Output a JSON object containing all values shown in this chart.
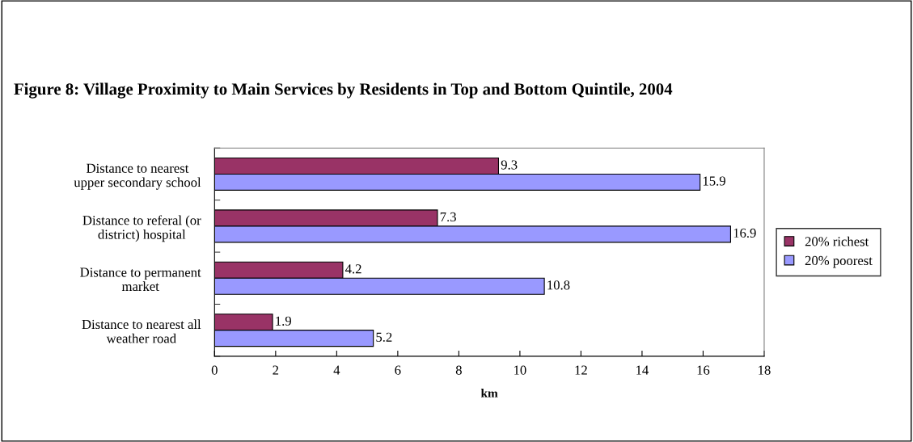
{
  "chart_data": {
    "type": "bar",
    "orientation": "horizontal",
    "title": "Figure 8: Village Proximity to Main Services by Residents in Top and Bottom Quintile, 2004",
    "xlabel": "km",
    "categories": [
      "Distance to nearest\nupper secondary school",
      "Distance to referal (or\ndistrict) hospital",
      "Distance to permanent\nmarket",
      "Distance to nearest all\nweather road"
    ],
    "series": [
      {
        "name": "20% richest",
        "color": "#993366",
        "values": [
          9.3,
          7.3,
          4.2,
          1.9
        ]
      },
      {
        "name": "20% poorest",
        "color": "#9999ff",
        "values": [
          15.9,
          16.9,
          10.8,
          5.2
        ]
      }
    ],
    "xlim": [
      0,
      18
    ],
    "xticks": [
      0,
      2,
      4,
      6,
      8,
      10,
      12,
      14,
      16,
      18
    ],
    "data_labels": true,
    "grid": false,
    "legend": "right"
  }
}
